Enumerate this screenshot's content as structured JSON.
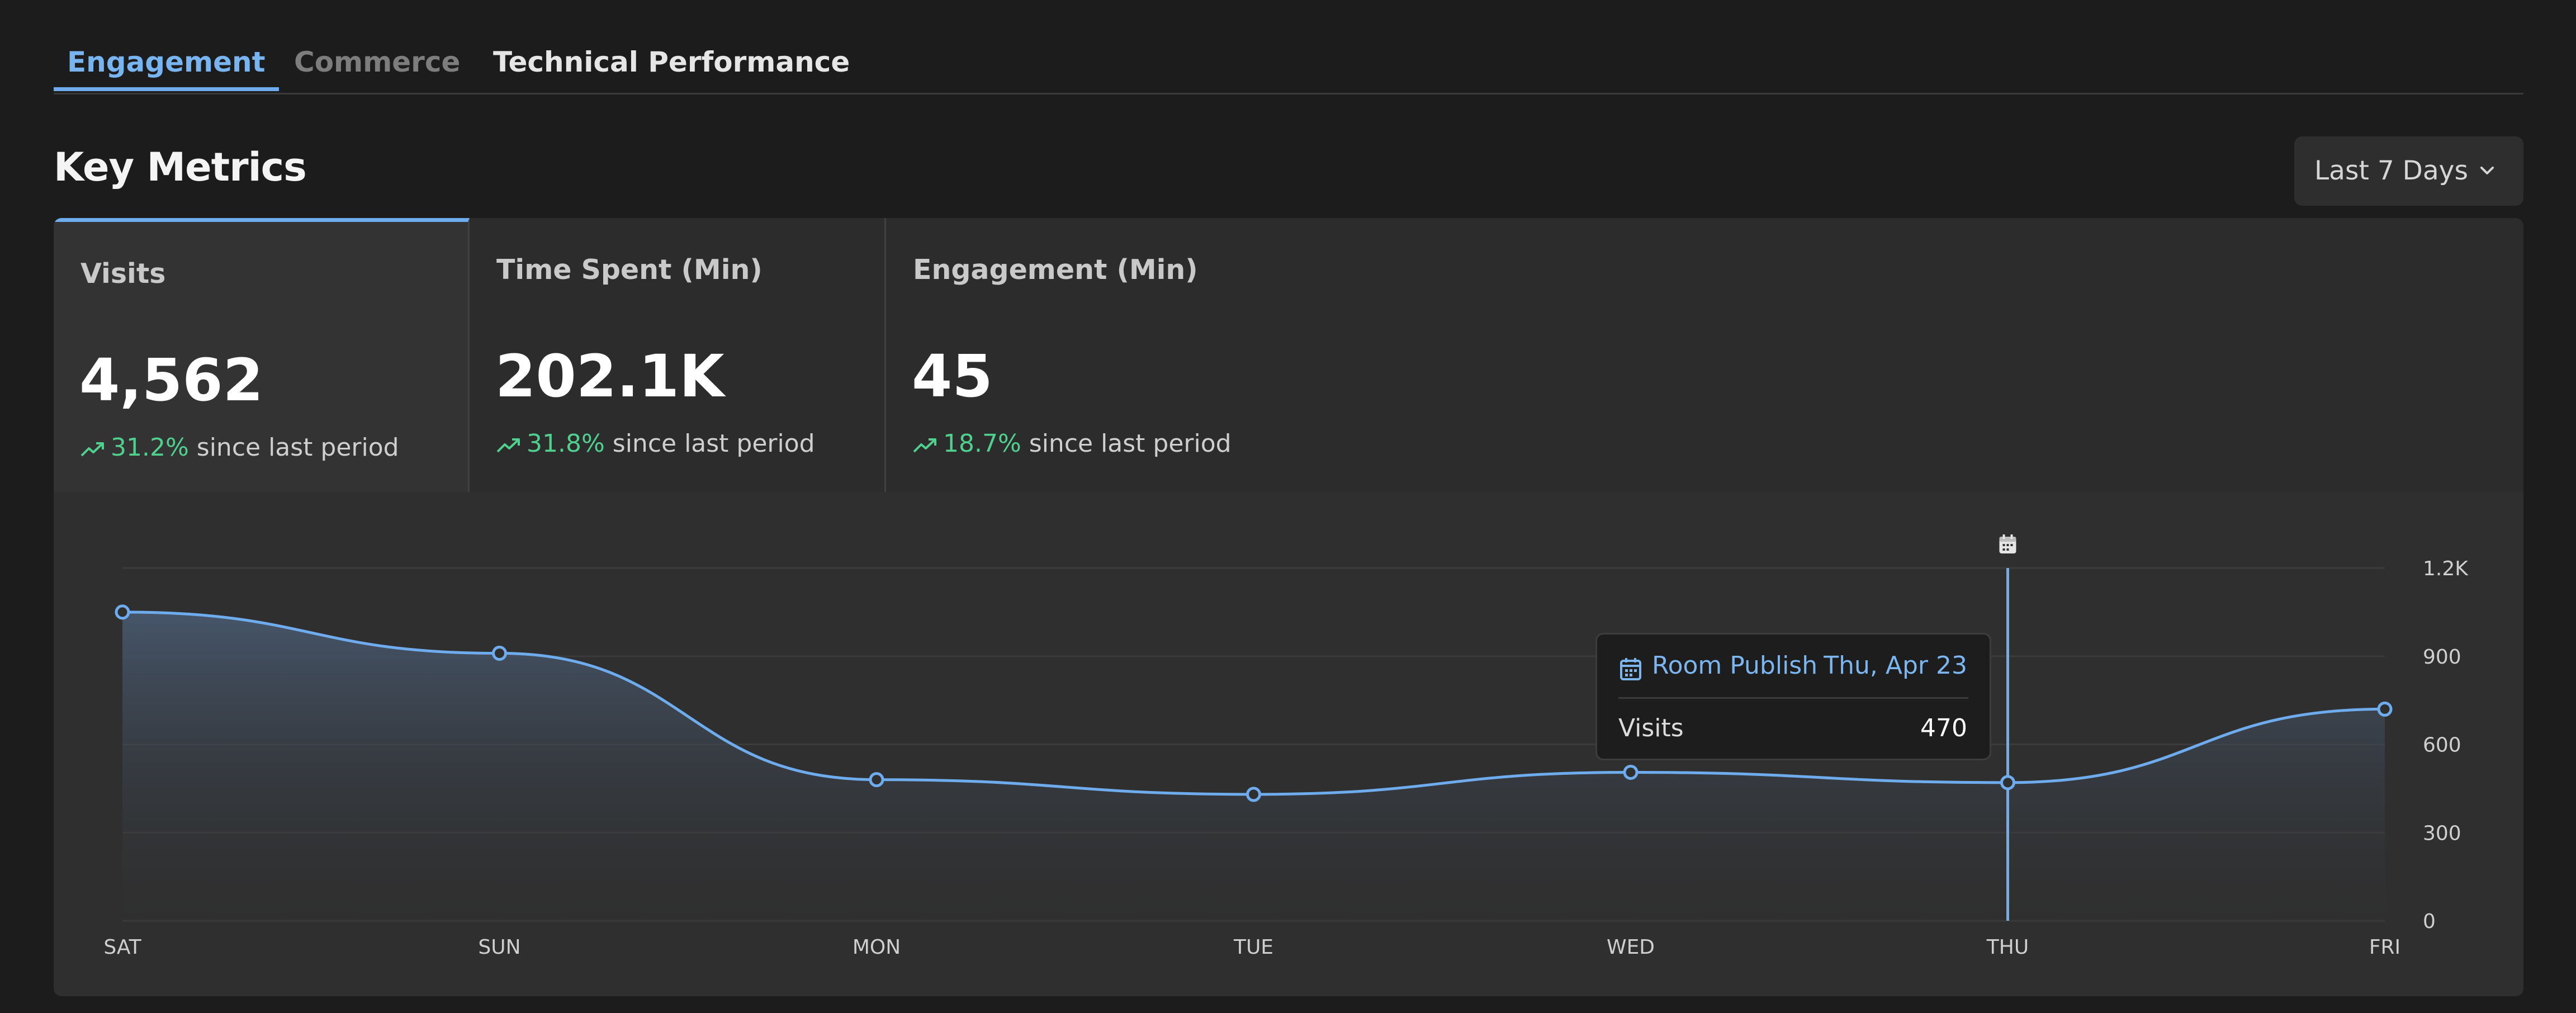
{
  "tabs": [
    {
      "label": "Engagement",
      "state": "active"
    },
    {
      "label": "Commerce",
      "state": "muted"
    },
    {
      "label": "Technical Performance",
      "state": "plain"
    }
  ],
  "section_title": "Key Metrics",
  "date_range": {
    "selected": "Last 7 Days",
    "icon": "chevron-down-icon"
  },
  "metrics": [
    {
      "label": "Visits",
      "value": "4,562",
      "change": "31.2%",
      "change_suffix": "since last period",
      "selected": true
    },
    {
      "label": "Time Spent (Min)",
      "value": "202.1K",
      "change": "31.8%",
      "change_suffix": "since last period",
      "selected": false
    },
    {
      "label": "Engagement (Min)",
      "value": "45",
      "change": "18.7%",
      "change_suffix": "since last period",
      "selected": false
    }
  ],
  "colors": {
    "accent": "#6eacee",
    "positive": "#4fd08e",
    "background": "#1c1c1c",
    "panel": "#2c2c2c"
  },
  "tooltip": {
    "icon": "calendar-icon",
    "event": "Room Publish",
    "date": "Thu, Apr 23",
    "metric": "Visits",
    "value": "470"
  },
  "chart_data": {
    "type": "area",
    "categories": [
      "SAT",
      "SUN",
      "MON",
      "TUE",
      "WED",
      "THU",
      "FRI"
    ],
    "series": [
      {
        "values": [
          1050,
          910,
          480,
          430,
          505,
          470,
          720
        ]
      }
    ],
    "yticks": [
      "0",
      "300",
      "600",
      "900",
      "1.2K"
    ],
    "ylim": [
      0,
      1200
    ],
    "grid": true,
    "y_axis_side": "right",
    "event_marker": {
      "category": "THU",
      "icon": "calendar-icon"
    }
  }
}
